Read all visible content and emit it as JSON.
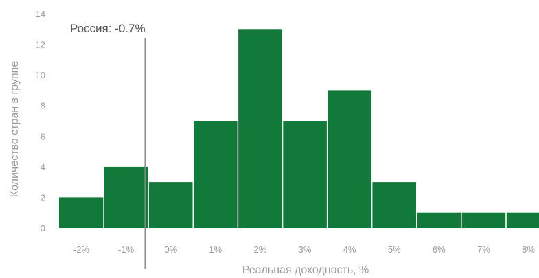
{
  "chart_data": {
    "type": "bar",
    "categories": [
      "-2%",
      "-1%",
      "0%",
      "1%",
      "2%",
      "3%",
      "4%",
      "5%",
      "6%",
      "7%",
      "8%"
    ],
    "values": [
      2,
      4,
      3,
      7,
      13,
      7,
      9,
      3,
      1,
      1,
      1
    ],
    "title": "",
    "xlabel": "Реальная доходность, %",
    "ylabel": "Количество стран в группе",
    "ylim": [
      0,
      14
    ],
    "yticks": [
      0,
      2,
      4,
      6,
      8,
      10,
      12,
      14
    ],
    "grid": false,
    "bar_color": "#117a3a",
    "reference_line": {
      "x": -0.7,
      "label": "Россия: -0.7%",
      "color": "#8a8a8a"
    }
  }
}
